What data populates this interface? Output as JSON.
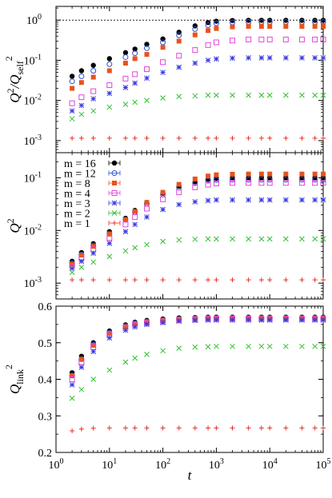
{
  "colors": {
    "m1": "#e8322a",
    "m2": "#2ec02e",
    "m3": "#3a3ae0",
    "m4": "#e246d8",
    "m8": "#e8531c",
    "m12": "#2b4fd6",
    "m16": "#000000"
  },
  "chart_data": [
    {
      "type": "scatter",
      "ylabel_main": "Q",
      "ylabel_sup1": "2",
      "ylabel_div": "/Q",
      "ylabel_sub": "self",
      "ylabel_sup2": "2",
      "yscale": "log",
      "ylim": [
        0.0005,
        2.2
      ],
      "xscale": "log",
      "xlim": [
        1,
        100000
      ],
      "reference_line": 1,
      "x": [
        2,
        3,
        5,
        10,
        20,
        30,
        50,
        100,
        200,
        400,
        700,
        1000,
        2000,
        4000,
        7000,
        10000,
        20000,
        40000,
        70000,
        100000
      ],
      "yticks": [
        0.001,
        0.01,
        0.1,
        1
      ],
      "ytick_labels": [
        "10",
        "10",
        "10",
        "10"
      ],
      "ytick_exps": [
        "-3",
        "-2",
        "-1",
        "0"
      ],
      "series": [
        {
          "key": "m16",
          "marker": "filled-circle",
          "values": [
            0.04,
            0.055,
            0.075,
            0.11,
            0.155,
            0.19,
            0.25,
            0.34,
            0.5,
            0.72,
            0.87,
            0.94,
            0.98,
            0.99,
            0.99,
            0.99,
            0.99,
            0.99,
            0.99,
            0.99
          ]
        },
        {
          "key": "m12",
          "marker": "open-circle",
          "values": [
            0.03,
            0.04,
            0.055,
            0.08,
            0.12,
            0.15,
            0.2,
            0.28,
            0.42,
            0.6,
            0.75,
            0.83,
            0.88,
            0.9,
            0.9,
            0.9,
            0.9,
            0.9,
            0.9,
            0.9
          ]
        },
        {
          "key": "m8",
          "marker": "filled-square",
          "values": [
            0.02,
            0.028,
            0.038,
            0.055,
            0.085,
            0.11,
            0.14,
            0.21,
            0.3,
            0.43,
            0.55,
            0.62,
            0.68,
            0.7,
            0.7,
            0.7,
            0.7,
            0.7,
            0.7,
            0.7
          ]
        },
        {
          "key": "m4",
          "marker": "open-square",
          "values": [
            0.0085,
            0.012,
            0.017,
            0.024,
            0.035,
            0.045,
            0.06,
            0.09,
            0.13,
            0.18,
            0.24,
            0.28,
            0.31,
            0.33,
            0.33,
            0.33,
            0.33,
            0.33,
            0.33,
            0.33
          ]
        },
        {
          "key": "m3",
          "marker": "asterisk",
          "values": [
            0.0055,
            0.0075,
            0.011,
            0.015,
            0.021,
            0.027,
            0.036,
            0.05,
            0.067,
            0.085,
            0.1,
            0.108,
            0.113,
            0.115,
            0.115,
            0.115,
            0.115,
            0.115,
            0.115,
            0.115
          ]
        },
        {
          "key": "m2",
          "marker": "cross",
          "values": [
            0.0035,
            0.0045,
            0.0055,
            0.0068,
            0.008,
            0.009,
            0.01,
            0.0115,
            0.0125,
            0.013,
            0.0135,
            0.0135,
            0.0135,
            0.0135,
            0.0135,
            0.0135,
            0.0135,
            0.0135,
            0.0135,
            0.0135
          ]
        },
        {
          "key": "m1",
          "marker": "plus",
          "values": [
            0.00115,
            0.00115,
            0.00115,
            0.00115,
            0.00115,
            0.00115,
            0.00115,
            0.00115,
            0.00115,
            0.00115,
            0.00115,
            0.00115,
            0.00115,
            0.00115,
            0.00115,
            0.00115,
            0.00115,
            0.00115,
            0.00115,
            0.00115
          ]
        }
      ]
    },
    {
      "type": "scatter",
      "ylabel_main": "Q",
      "ylabel_sup1": "2",
      "yscale": "log",
      "ylim": [
        0.0005,
        0.3
      ],
      "xscale": "log",
      "xlim": [
        1,
        100000
      ],
      "x": [
        2,
        3,
        5,
        10,
        20,
        30,
        50,
        100,
        200,
        400,
        700,
        1000,
        2000,
        4000,
        7000,
        10000,
        20000,
        40000,
        70000,
        100000
      ],
      "yticks": [
        0.001,
        0.01,
        0.1
      ],
      "ytick_labels": [
        "10",
        "10",
        "10"
      ],
      "ytick_exps": [
        "-3",
        "-2",
        "-1"
      ],
      "legend_location": "top-left",
      "legend": [
        {
          "key": "m16",
          "marker": "filled-circle",
          "label": "m = 16"
        },
        {
          "key": "m12",
          "marker": "open-circle",
          "label": "m = 12"
        },
        {
          "key": "m8",
          "marker": "filled-square",
          "label": "m = 8"
        },
        {
          "key": "m4",
          "marker": "open-square",
          "label": "m = 4"
        },
        {
          "key": "m3",
          "marker": "asterisk",
          "label": "m = 3"
        },
        {
          "key": "m2",
          "marker": "cross",
          "label": "m = 2"
        },
        {
          "key": "m1",
          "marker": "plus",
          "label": "m = 1"
        }
      ],
      "series": [
        {
          "key": "m16",
          "marker": "filled-circle",
          "values": [
            0.0026,
            0.0038,
            0.0056,
            0.0095,
            0.017,
            0.024,
            0.034,
            0.051,
            0.069,
            0.084,
            0.094,
            0.098,
            0.1,
            0.1,
            0.1,
            0.1,
            0.1,
            0.1,
            0.1,
            0.1
          ]
        },
        {
          "key": "m12",
          "marker": "open-circle",
          "values": [
            0.0024,
            0.0035,
            0.0052,
            0.0088,
            0.016,
            0.022,
            0.032,
            0.048,
            0.065,
            0.079,
            0.088,
            0.091,
            0.092,
            0.092,
            0.092,
            0.092,
            0.092,
            0.092,
            0.092,
            0.092
          ]
        },
        {
          "key": "m8",
          "marker": "filled-square",
          "values": [
            0.0023,
            0.0034,
            0.005,
            0.0085,
            0.016,
            0.023,
            0.034,
            0.053,
            0.075,
            0.095,
            0.108,
            0.114,
            0.117,
            0.118,
            0.118,
            0.118,
            0.118,
            0.118,
            0.118,
            0.118
          ]
        },
        {
          "key": "m4",
          "marker": "open-square",
          "values": [
            0.0021,
            0.003,
            0.0044,
            0.0072,
            0.013,
            0.018,
            0.026,
            0.039,
            0.053,
            0.066,
            0.074,
            0.078,
            0.08,
            0.08,
            0.08,
            0.08,
            0.08,
            0.08,
            0.08,
            0.08
          ]
        },
        {
          "key": "m3",
          "marker": "asterisk",
          "values": [
            0.0019,
            0.0026,
            0.0037,
            0.0057,
            0.0095,
            0.013,
            0.018,
            0.025,
            0.031,
            0.035,
            0.037,
            0.038,
            0.038,
            0.038,
            0.038,
            0.038,
            0.038,
            0.038,
            0.038,
            0.038
          ]
        },
        {
          "key": "m2",
          "marker": "cross",
          "values": [
            0.0016,
            0.002,
            0.0025,
            0.0032,
            0.0041,
            0.0047,
            0.0054,
            0.0062,
            0.0066,
            0.0068,
            0.0069,
            0.0069,
            0.0069,
            0.0069,
            0.0069,
            0.0069,
            0.0069,
            0.0069,
            0.0069,
            0.0069
          ]
        },
        {
          "key": "m1",
          "marker": "plus",
          "values": [
            0.00115,
            0.00115,
            0.00115,
            0.00115,
            0.00115,
            0.00115,
            0.00115,
            0.00115,
            0.00115,
            0.00115,
            0.00115,
            0.00115,
            0.00115,
            0.00115,
            0.00115,
            0.00115,
            0.00115,
            0.00115,
            0.00115,
            0.00115
          ]
        }
      ]
    },
    {
      "type": "scatter",
      "ylabel_main": "Q",
      "ylabel_sub": "link",
      "ylabel_sup1": "2",
      "yscale": "linear",
      "ylim": [
        0.2,
        0.6
      ],
      "xscale": "log",
      "xlim": [
        1,
        100000
      ],
      "xlabel": "t",
      "x": [
        2,
        3,
        5,
        10,
        20,
        30,
        50,
        100,
        200,
        400,
        700,
        1000,
        2000,
        4000,
        7000,
        10000,
        20000,
        40000,
        70000,
        100000
      ],
      "yticks": [
        0.2,
        0.3,
        0.4,
        0.5,
        0.6
      ],
      "ytick_labels": [
        "0.2",
        "0.3",
        "0.4",
        "0.5",
        "0.6"
      ],
      "xticks": [
        1,
        10,
        100,
        1000,
        10000,
        100000
      ],
      "xtick_labels": [
        "10",
        "10",
        "10",
        "10",
        "10",
        "10"
      ],
      "xtick_exps": [
        "0",
        "1",
        "2",
        "3",
        "4",
        "5"
      ],
      "series": [
        {
          "key": "m16",
          "marker": "filled-circle",
          "values": [
            0.418,
            0.463,
            0.5,
            0.532,
            0.549,
            0.556,
            0.561,
            0.565,
            0.568,
            0.569,
            0.57,
            0.57,
            0.57,
            0.57,
            0.57,
            0.57,
            0.57,
            0.57,
            0.57,
            0.57
          ]
        },
        {
          "key": "m12",
          "marker": "open-circle",
          "values": [
            0.41,
            0.455,
            0.495,
            0.528,
            0.546,
            0.553,
            0.558,
            0.562,
            0.565,
            0.567,
            0.568,
            0.568,
            0.568,
            0.568,
            0.568,
            0.568,
            0.568,
            0.568,
            0.568,
            0.568
          ]
        },
        {
          "key": "m8",
          "marker": "filled-square",
          "values": [
            0.41,
            0.455,
            0.493,
            0.526,
            0.544,
            0.552,
            0.557,
            0.561,
            0.564,
            0.566,
            0.567,
            0.567,
            0.567,
            0.567,
            0.567,
            0.567,
            0.567,
            0.567,
            0.567,
            0.567
          ]
        },
        {
          "key": "m4",
          "marker": "open-square",
          "values": [
            0.4,
            0.447,
            0.488,
            0.522,
            0.541,
            0.549,
            0.554,
            0.558,
            0.562,
            0.564,
            0.565,
            0.565,
            0.565,
            0.565,
            0.565,
            0.565,
            0.565,
            0.565,
            0.565,
            0.565
          ]
        },
        {
          "key": "m3",
          "marker": "asterisk",
          "values": [
            0.385,
            0.433,
            0.476,
            0.513,
            0.534,
            0.543,
            0.55,
            0.555,
            0.559,
            0.561,
            0.562,
            0.562,
            0.562,
            0.562,
            0.562,
            0.562,
            0.562,
            0.562,
            0.562,
            0.562
          ]
        },
        {
          "key": "m2",
          "marker": "cross",
          "values": [
            0.348,
            0.372,
            0.4,
            0.425,
            0.447,
            0.458,
            0.468,
            0.478,
            0.485,
            0.488,
            0.489,
            0.49,
            0.49,
            0.49,
            0.49,
            0.49,
            0.49,
            0.49,
            0.49,
            0.49
          ]
        },
        {
          "key": "m1",
          "marker": "plus",
          "values": [
            0.259,
            0.264,
            0.266,
            0.267,
            0.267,
            0.267,
            0.267,
            0.267,
            0.267,
            0.267,
            0.267,
            0.267,
            0.267,
            0.267,
            0.267,
            0.267,
            0.267,
            0.267,
            0.267,
            0.267
          ]
        }
      ]
    }
  ]
}
